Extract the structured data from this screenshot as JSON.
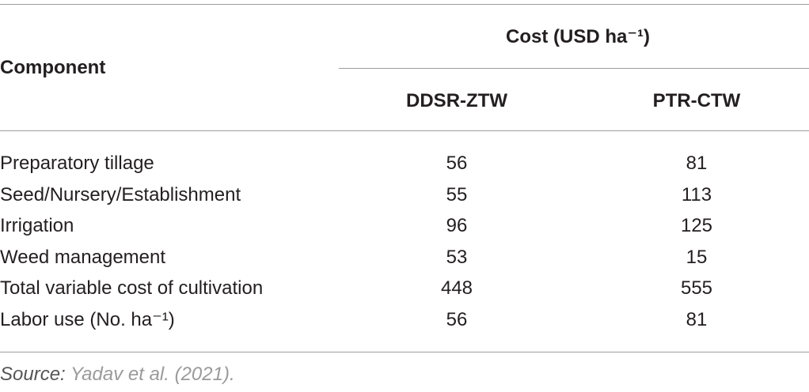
{
  "table": {
    "header": {
      "component": "Component",
      "cost_group": "Cost (USD ha⁻¹)",
      "columns": [
        "DDSR-ZTW",
        "PTR-CTW"
      ]
    },
    "rows": [
      [
        "Preparatory tillage",
        56,
        81
      ],
      [
        "Seed/Nursery/Establishment",
        55,
        113
      ],
      [
        "Irrigation",
        96,
        125
      ],
      [
        "Weed management",
        53,
        15
      ],
      [
        "Total variable cost of cultivation",
        448,
        555
      ],
      [
        "Labor use (No. ha⁻¹)",
        56,
        81
      ]
    ]
  },
  "source": {
    "label": "Source:",
    "text": "Yadav et al. (2021)."
  }
}
